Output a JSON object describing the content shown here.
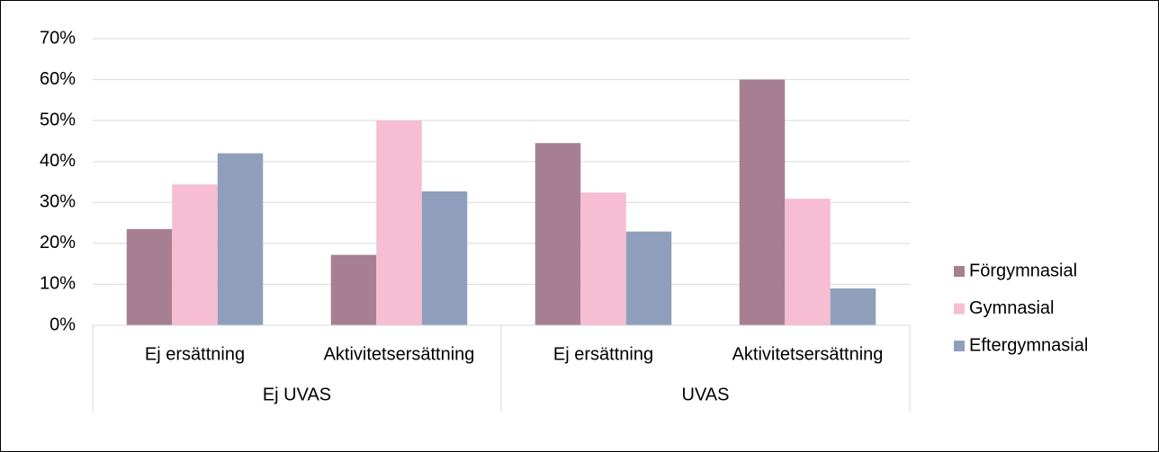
{
  "chart_data": {
    "type": "bar",
    "category_groups": [
      {
        "name": "Ej UVAS",
        "categories": [
          "Ej ersättning",
          "Aktivitetsersättning"
        ]
      },
      {
        "name": "UVAS",
        "categories": [
          "Ej ersättning",
          "Aktivitetsersättning"
        ]
      }
    ],
    "series": [
      {
        "name": "Förgymnasial",
        "color": "#a67f93",
        "values": [
          23.5,
          17.2,
          44.5,
          60
        ]
      },
      {
        "name": "Gymnasial",
        "color": "#f7bdd2",
        "values": [
          34.4,
          50,
          32.4,
          30.9
        ]
      },
      {
        "name": "Eftergymnasial",
        "color": "#8f9fbb",
        "values": [
          42,
          32.7,
          22.9,
          9
        ]
      }
    ],
    "ylim": [
      0,
      70
    ],
    "yticks": [
      {
        "value": 0,
        "label": "0%"
      },
      {
        "value": 10,
        "label": "10%"
      },
      {
        "value": 20,
        "label": "20%"
      },
      {
        "value": 30,
        "label": "30%"
      },
      {
        "value": 40,
        "label": "40%"
      },
      {
        "value": 50,
        "label": "50%"
      },
      {
        "value": 60,
        "label": "60%"
      },
      {
        "value": 70,
        "label": "70%"
      }
    ],
    "grid": true,
    "legend": "right"
  }
}
